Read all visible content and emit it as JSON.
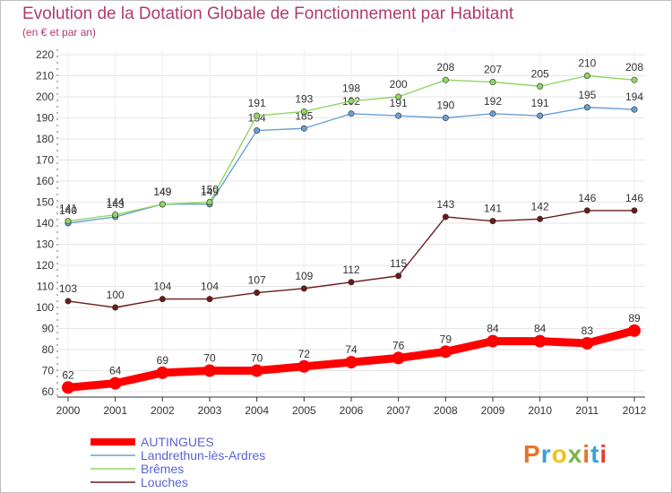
{
  "title": "Evolution de la Dotation Globale de Fonctionnement par Habitant",
  "subtitle": "(en € et par an)",
  "logo": {
    "text": "Proxiti",
    "colors": [
      "#e8742a",
      "#3aa0d8",
      "#f0c419",
      "#7ab648",
      "#e8742a",
      "#3aa0d8",
      "#e23d2e"
    ]
  },
  "chart_data": {
    "type": "line",
    "title": "Evolution de la Dotation Globale de Fonctionnement par Habitant",
    "subtitle": "(en € et par an)",
    "x": [
      "2000",
      "2001",
      "2002",
      "2003",
      "2004",
      "2005",
      "2006",
      "2007",
      "2008",
      "2009",
      "2010",
      "2011",
      "2012"
    ],
    "ylim": [
      60,
      220
    ],
    "yticks": [
      60,
      70,
      80,
      90,
      100,
      110,
      120,
      130,
      140,
      150,
      160,
      170,
      180,
      190,
      200,
      210,
      220
    ],
    "grid": true,
    "legend_position": "bottom-left",
    "series": [
      {
        "name": "AUTINGUES",
        "color": "#ff0000",
        "emphasis": true,
        "values": [
          62,
          64,
          69,
          70,
          70,
          72,
          74,
          76,
          79,
          84,
          84,
          83,
          89
        ]
      },
      {
        "name": "Landrethun-lès-Ardres",
        "color": "#6a9fd4",
        "values": [
          140,
          143,
          149,
          149,
          184,
          185,
          192,
          191,
          190,
          192,
          191,
          195,
          194
        ]
      },
      {
        "name": "Brêmes",
        "color": "#8fd663",
        "values": [
          141,
          144,
          149,
          150,
          191,
          193,
          198,
          200,
          208,
          207,
          205,
          210,
          208
        ]
      },
      {
        "name": "Louches",
        "color": "#6b1a1a",
        "values": [
          103,
          100,
          104,
          104,
          107,
          109,
          112,
          115,
          143,
          141,
          142,
          146,
          146
        ]
      }
    ]
  }
}
